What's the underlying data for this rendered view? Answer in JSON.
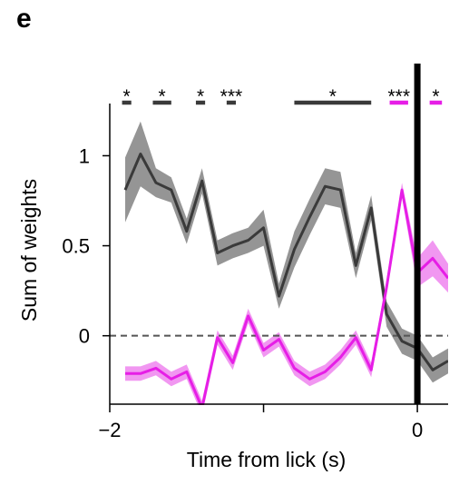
{
  "panel_label": "e",
  "chart_data": {
    "type": "line",
    "title": "",
    "xlabel": "Time from lick (s)",
    "ylabel": "Sum of weights",
    "xlim": [
      -2,
      0.2
    ],
    "ylim": [
      -0.38,
      1.3
    ],
    "xticks": [
      {
        "value": -2,
        "label": "−2"
      },
      {
        "value": -1,
        "label": ""
      },
      {
        "value": 0,
        "label": "0"
      }
    ],
    "yticks": [
      {
        "value": 0,
        "label": "0"
      },
      {
        "value": 0.5,
        "label": "0.5"
      },
      {
        "value": 1,
        "label": "1"
      }
    ],
    "zero_line": {
      "y": 0,
      "style": "dashed"
    },
    "vertical_line": {
      "x": 0,
      "color": "#000000"
    },
    "x": [
      -1.9,
      -1.8,
      -1.7,
      -1.6,
      -1.5,
      -1.4,
      -1.3,
      -1.2,
      -1.1,
      -1.0,
      -0.9,
      -0.8,
      -0.7,
      -0.6,
      -0.5,
      -0.4,
      -0.3,
      -0.2,
      -0.1,
      0.0,
      0.1,
      0.2
    ],
    "series": [
      {
        "color": "#3a3a3a",
        "band_color": "#8a8a8a",
        "values": [
          0.81,
          1.01,
          0.85,
          0.81,
          0.58,
          0.86,
          0.46,
          0.5,
          0.53,
          0.6,
          0.22,
          0.48,
          0.66,
          0.83,
          0.81,
          0.39,
          0.71,
          0.12,
          -0.03,
          -0.07,
          -0.19,
          -0.14
        ],
        "err": [
          0.18,
          0.18,
          0.08,
          0.07,
          0.07,
          0.07,
          0.07,
          0.07,
          0.07,
          0.1,
          0.07,
          0.1,
          0.1,
          0.1,
          0.1,
          0.07,
          0.07,
          0.07,
          0.07,
          0.07,
          0.07,
          0.07
        ]
      },
      {
        "color": "#e61ee6",
        "band_color": "#f08cf0",
        "values": [
          -0.21,
          -0.21,
          -0.18,
          -0.24,
          -0.2,
          -0.4,
          -0.01,
          -0.15,
          0.11,
          -0.08,
          -0.02,
          -0.18,
          -0.24,
          -0.2,
          -0.12,
          -0.01,
          -0.19,
          0.27,
          0.81,
          0.35,
          0.43,
          0.32
        ],
        "err": [
          0.04,
          0.04,
          0.04,
          0.04,
          0.04,
          0.04,
          0.04,
          0.04,
          0.04,
          0.04,
          0.04,
          0.04,
          0.04,
          0.04,
          0.04,
          0.04,
          0.04,
          0.04,
          0.04,
          0.08,
          0.1,
          0.08
        ]
      }
    ],
    "significance": [
      {
        "x": [
          -1.92,
          -1.86
        ],
        "label": "*",
        "color": "#3a3a3a"
      },
      {
        "x": [
          -1.72,
          -1.6
        ],
        "label": "*",
        "color": "#3a3a3a"
      },
      {
        "x": [
          -1.44,
          -1.38
        ],
        "label": "*",
        "color": "#3a3a3a"
      },
      {
        "x": [
          -1.24,
          -1.18
        ],
        "label": "***",
        "color": "#3a3a3a"
      },
      {
        "x": [
          -0.8,
          -0.3
        ],
        "label": "*",
        "color": "#3a3a3a"
      },
      {
        "x": [
          -0.18,
          -0.06
        ],
        "label": "***",
        "color": "#e61ee6"
      },
      {
        "x": [
          0.08,
          0.16
        ],
        "label": "*",
        "color": "#e61ee6"
      }
    ]
  }
}
